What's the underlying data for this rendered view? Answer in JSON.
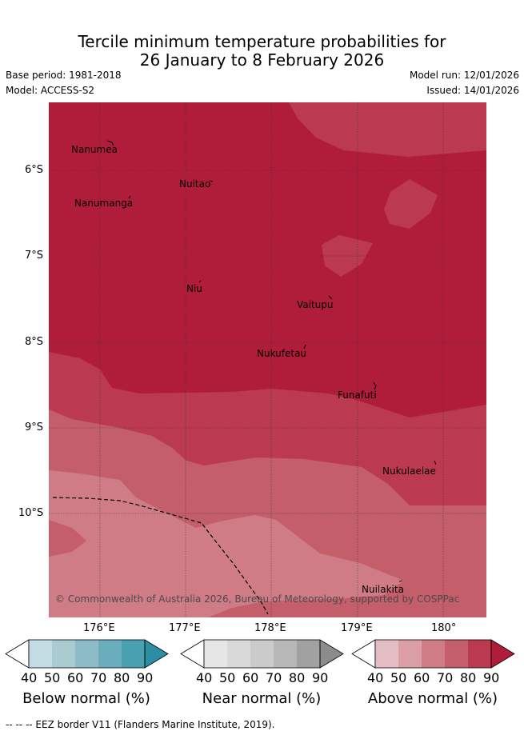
{
  "title_line1": "Tercile minimum temperature probabilities for",
  "title_line2": "26 January to 8 February 2026",
  "meta": {
    "base_period": "Base period: 1981-2018",
    "model": "Model: ACCESS-S2",
    "model_run": "Model run: 12/01/2026",
    "issued": "Issued: 14/01/2026"
  },
  "axes": {
    "lat_labels": [
      "6°S",
      "7°S",
      "8°S",
      "9°S",
      "10°S"
    ],
    "lon_labels": [
      "176°E",
      "177°E",
      "178°E",
      "179°E",
      "180°"
    ]
  },
  "places": {
    "nanumea": "Nanumea",
    "nuitao": "Nuitao",
    "nanumanga": "Nanumanga",
    "niu": "Niu",
    "vaitupu": "Vaitupu",
    "nukufetau": "Nukufetau",
    "funafuti": "Funafuti",
    "nukulaelae": "Nukulaelae",
    "nuilakita": "Nuilakita"
  },
  "credit": "© Commonwealth of Australia 2026, Bureau of Meteorology, supported by COSPPac",
  "colorbars": {
    "ticks": [
      "40",
      "50",
      "60",
      "70",
      "80",
      "90"
    ],
    "below_title": "Below normal (%)",
    "near_title": "Near normal (%)",
    "above_title": "Above normal (%)",
    "below_colors": [
      "#ffffff",
      "#c3dbe2",
      "#a9cbd2",
      "#8dbcc8",
      "#6aaebe",
      "#48a0b1",
      "#2b8ea3"
    ],
    "near_colors": [
      "#ffffff",
      "#e6e6e6",
      "#d9d9d9",
      "#cbcbcb",
      "#b7b7b7",
      "#a1a1a1",
      "#8c8c8c"
    ],
    "above_colors": [
      "#ffffff",
      "#e4bcc3",
      "#db9da6",
      "#d07c86",
      "#c45e6a",
      "#bc3a4f",
      "#b01d3a"
    ]
  },
  "footer": "--  --  -- EEZ border V11 (Flanders Marine Institute, 2019)."
}
